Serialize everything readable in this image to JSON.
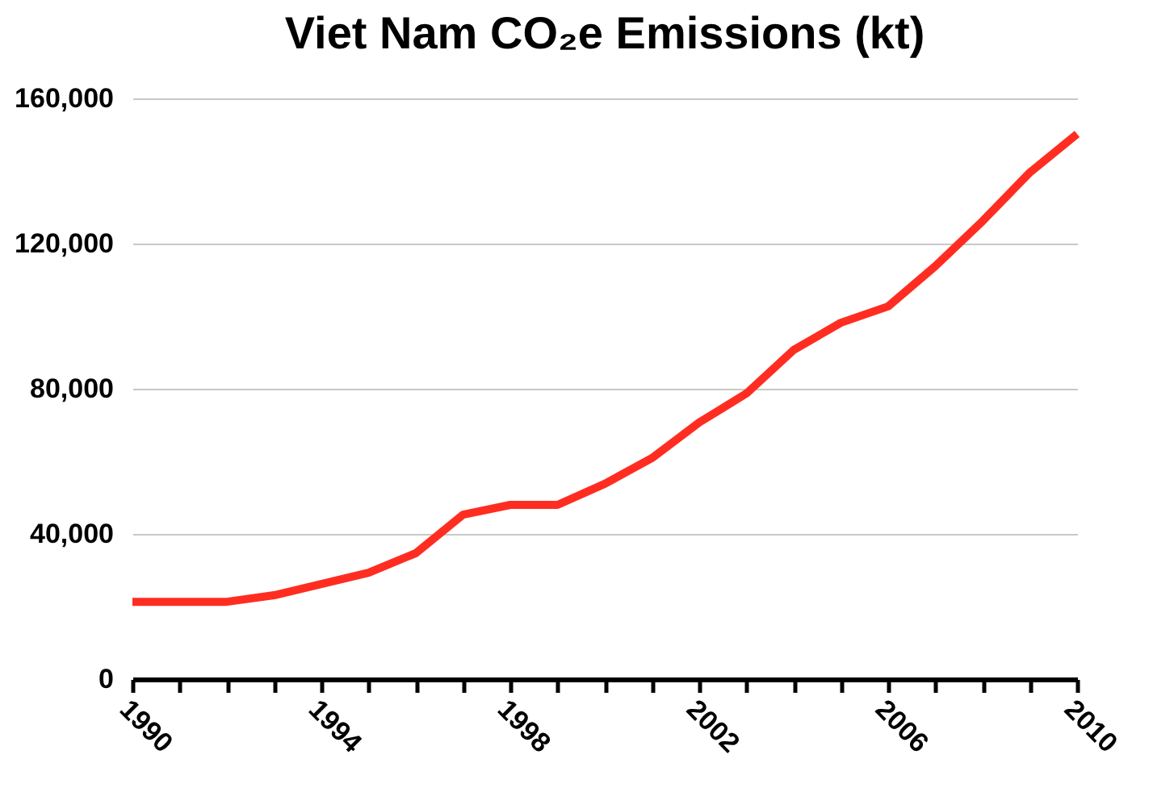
{
  "chart_data": {
    "type": "line",
    "title": "Viet Nam CO₂e Emissions (kt)",
    "x": [
      1990,
      1991,
      1992,
      1993,
      1994,
      1995,
      1996,
      1997,
      1998,
      1999,
      2000,
      2001,
      2002,
      2003,
      2004,
      2005,
      2006,
      2007,
      2008,
      2009,
      2010
    ],
    "series": [
      {
        "color": "#ff2d21",
        "values": [
          21300,
          21300,
          21300,
          23100,
          26200,
          29300,
          34700,
          45300,
          48000,
          48000,
          53800,
          60900,
          70700,
          78700,
          90700,
          98200,
          102700,
          113800,
          126200,
          139600,
          150200
        ]
      }
    ],
    "xlim": [
      1990,
      2010
    ],
    "xticks": [
      {
        "value": 1990,
        "label": "1990"
      },
      {
        "value": 1991,
        "label": null
      },
      {
        "value": 1992,
        "label": null
      },
      {
        "value": 1993,
        "label": null
      },
      {
        "value": 1994,
        "label": "1994"
      },
      {
        "value": 1995,
        "label": null
      },
      {
        "value": 1996,
        "label": null
      },
      {
        "value": 1997,
        "label": null
      },
      {
        "value": 1998,
        "label": "1998"
      },
      {
        "value": 1999,
        "label": null
      },
      {
        "value": 2000,
        "label": null
      },
      {
        "value": 2001,
        "label": null
      },
      {
        "value": 2002,
        "label": "2002"
      },
      {
        "value": 2003,
        "label": null
      },
      {
        "value": 2004,
        "label": null
      },
      {
        "value": 2005,
        "label": null
      },
      {
        "value": 2006,
        "label": "2006"
      },
      {
        "value": 2007,
        "label": null
      },
      {
        "value": 2008,
        "label": null
      },
      {
        "value": 2009,
        "label": null
      },
      {
        "value": 2010,
        "label": "2010"
      }
    ],
    "ylim": [
      0,
      160000
    ],
    "yticks": [
      {
        "value": 0,
        "label": "0"
      },
      {
        "value": 40000,
        "label": "40,000"
      },
      {
        "value": 80000,
        "label": "80,000"
      },
      {
        "value": 120000,
        "label": "120,000"
      },
      {
        "value": 160000,
        "label": "160,000"
      }
    ],
    "grid": "y",
    "legend": false,
    "marker": "none",
    "line_style": "solid"
  }
}
